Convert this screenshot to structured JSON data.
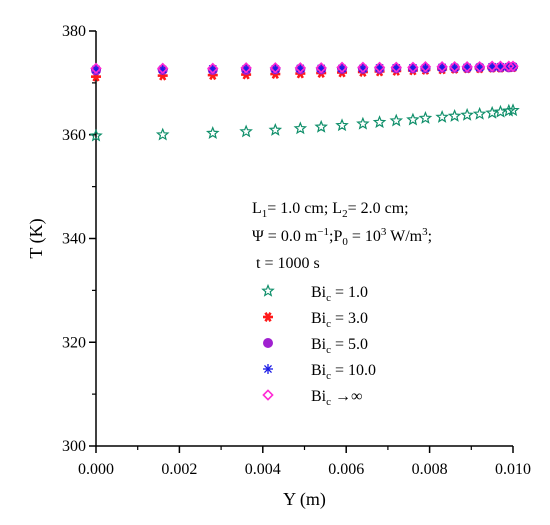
{
  "chart_data": {
    "type": "scatter",
    "xlabel": "Y (m)",
    "ylabel": "T (K)",
    "xlim": [
      0.0,
      0.01
    ],
    "ylim": [
      300,
      380
    ],
    "xticks": [
      "0.000",
      "0.002",
      "0.004",
      "0.006",
      "0.008",
      "0.010"
    ],
    "yticks": [
      "300",
      "320",
      "340",
      "360",
      "380"
    ],
    "annotation_lines": [
      "L1= 1.0 cm; L2= 2.0 cm;",
      "Ψ = 0.0 m−1;P0 = 103 W/m3;",
      "t = 1000 s"
    ],
    "x": [
      0.0,
      0.0016,
      0.0028,
      0.0036,
      0.0043,
      0.0049,
      0.0054,
      0.0059,
      0.0064,
      0.0068,
      0.0072,
      0.0076,
      0.0079,
      0.0083,
      0.0086,
      0.0089,
      0.0092,
      0.0095,
      0.0097,
      0.0099,
      0.01
    ],
    "series": [
      {
        "name": "Bic = 1.0",
        "marker": "star",
        "color": "#0f8f6a",
        "values": [
          359.8,
          360.0,
          360.3,
          360.6,
          360.9,
          361.2,
          361.5,
          361.8,
          362.1,
          362.4,
          362.7,
          362.9,
          363.2,
          363.4,
          363.6,
          363.8,
          364.0,
          364.2,
          364.4,
          364.6,
          364.7
        ]
      },
      {
        "name": "Bic = 3.0",
        "marker": "filled-star",
        "color": "#ff1a1a",
        "values": [
          371.2,
          371.4,
          371.5,
          371.6,
          371.7,
          371.8,
          371.9,
          372.0,
          372.1,
          372.2,
          372.3,
          372.4,
          372.5,
          372.6,
          372.7,
          372.8,
          372.8,
          372.9,
          372.9,
          373.0,
          373.0
        ]
      },
      {
        "name": "Bic = 5.0",
        "marker": "filled-circle",
        "color": "#a020d0",
        "values": [
          372.4,
          372.5,
          372.5,
          372.5,
          372.6,
          372.6,
          372.6,
          372.7,
          372.7,
          372.7,
          372.8,
          372.8,
          372.8,
          372.9,
          372.9,
          372.9,
          373.0,
          373.0,
          373.0,
          373.0,
          373.1
        ]
      },
      {
        "name": "Bic = 10.0",
        "marker": "asterisk",
        "color": "#1a1ae6",
        "values": [
          372.6,
          372.6,
          372.7,
          372.7,
          372.7,
          372.8,
          372.8,
          372.8,
          372.8,
          372.9,
          372.9,
          372.9,
          372.9,
          373.0,
          373.0,
          373.0,
          373.0,
          373.1,
          373.1,
          373.1,
          373.1
        ]
      },
      {
        "name": "Bic →∞",
        "marker": "open-diamond",
        "color": "#ff2ad4",
        "values": [
          372.8,
          372.8,
          372.8,
          372.9,
          372.9,
          372.9,
          372.9,
          373.0,
          373.0,
          373.0,
          373.0,
          373.0,
          373.1,
          373.1,
          373.1,
          373.1,
          373.1,
          373.2,
          373.2,
          373.2,
          373.2
        ]
      }
    ],
    "legend": {
      "placement": "lower-right inside",
      "entries": [
        {
          "base": "Bi",
          "sub": "c",
          "rest": " = 1.0"
        },
        {
          "base": "Bi",
          "sub": "c",
          "rest": " = 3.0"
        },
        {
          "base": "Bi",
          "sub": "c",
          "rest": " = 5.0"
        },
        {
          "base": "Bi",
          "sub": "c",
          "rest": " = 10.0"
        },
        {
          "base": "Bi",
          "sub": "c",
          "rest": " →∞"
        }
      ]
    },
    "grid": false
  }
}
